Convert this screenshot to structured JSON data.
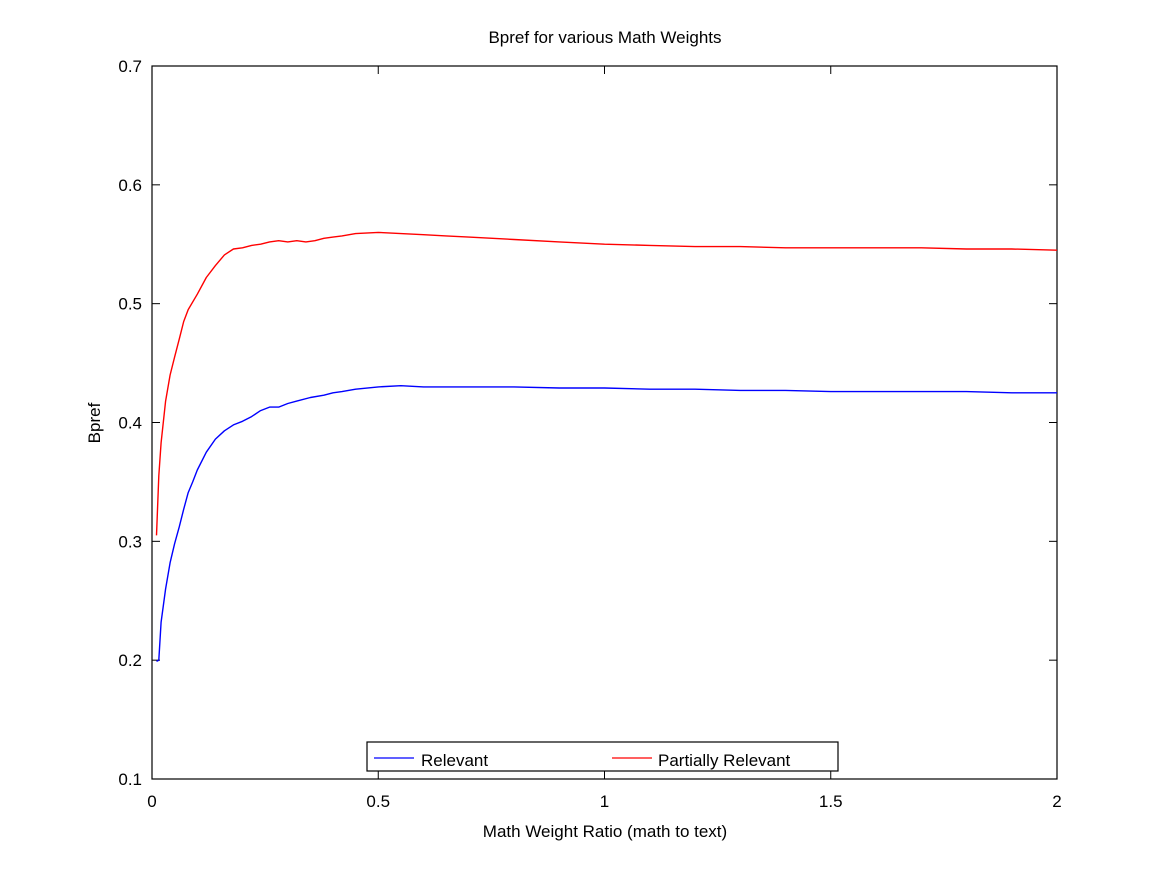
{
  "chart_data": {
    "type": "line",
    "title": "Bpref for various Math Weights",
    "xlabel": "Math Weight Ratio (math to text)",
    "ylabel": "Bpref",
    "xlim": [
      0,
      2
    ],
    "ylim": [
      0.1,
      0.7
    ],
    "xticks": [
      0,
      0.5,
      1,
      1.5,
      2
    ],
    "xtick_labels": [
      "0",
      "0.5",
      "1",
      "1.5",
      "2"
    ],
    "yticks": [
      0.1,
      0.2,
      0.3,
      0.4,
      0.5,
      0.6,
      0.7
    ],
    "ytick_labels": [
      "0.1",
      "0.2",
      "0.3",
      "0.4",
      "0.5",
      "0.6",
      "0.7"
    ],
    "grid": false,
    "legend_position": "bottom-center",
    "series": [
      {
        "name": "Relevant",
        "color": "#0000ff",
        "x": [
          0.01,
          0.015,
          0.02,
          0.03,
          0.04,
          0.05,
          0.06,
          0.07,
          0.08,
          0.09,
          0.1,
          0.12,
          0.14,
          0.16,
          0.18,
          0.2,
          0.22,
          0.24,
          0.26,
          0.28,
          0.3,
          0.32,
          0.35,
          0.38,
          0.4,
          0.42,
          0.45,
          0.5,
          0.55,
          0.6,
          0.7,
          0.8,
          0.9,
          1.0,
          1.1,
          1.2,
          1.3,
          1.4,
          1.5,
          1.6,
          1.7,
          1.8,
          1.9,
          2.0
        ],
        "y": [
          0.199,
          0.2,
          0.232,
          0.26,
          0.282,
          0.298,
          0.312,
          0.327,
          0.341,
          0.35,
          0.36,
          0.375,
          0.386,
          0.393,
          0.398,
          0.401,
          0.405,
          0.41,
          0.413,
          0.413,
          0.416,
          0.418,
          0.421,
          0.423,
          0.425,
          0.426,
          0.428,
          0.43,
          0.431,
          0.43,
          0.43,
          0.43,
          0.429,
          0.429,
          0.428,
          0.428,
          0.427,
          0.427,
          0.426,
          0.426,
          0.426,
          0.426,
          0.425,
          0.425
        ]
      },
      {
        "name": "Partially Relevant",
        "color": "#ff0000",
        "x": [
          0.01,
          0.015,
          0.02,
          0.03,
          0.04,
          0.05,
          0.06,
          0.07,
          0.08,
          0.1,
          0.12,
          0.14,
          0.16,
          0.18,
          0.2,
          0.22,
          0.24,
          0.26,
          0.28,
          0.3,
          0.32,
          0.34,
          0.36,
          0.38,
          0.4,
          0.42,
          0.45,
          0.5,
          0.55,
          0.6,
          0.65,
          0.7,
          0.8,
          0.9,
          1.0,
          1.1,
          1.2,
          1.3,
          1.4,
          1.5,
          1.6,
          1.7,
          1.8,
          1.9,
          2.0
        ],
        "y": [
          0.305,
          0.355,
          0.383,
          0.418,
          0.44,
          0.455,
          0.47,
          0.485,
          0.495,
          0.508,
          0.522,
          0.532,
          0.541,
          0.546,
          0.547,
          0.549,
          0.55,
          0.552,
          0.553,
          0.552,
          0.553,
          0.552,
          0.553,
          0.555,
          0.556,
          0.557,
          0.559,
          0.56,
          0.559,
          0.558,
          0.557,
          0.556,
          0.554,
          0.552,
          0.55,
          0.549,
          0.548,
          0.548,
          0.547,
          0.547,
          0.547,
          0.547,
          0.546,
          0.546,
          0.545
        ]
      }
    ]
  }
}
